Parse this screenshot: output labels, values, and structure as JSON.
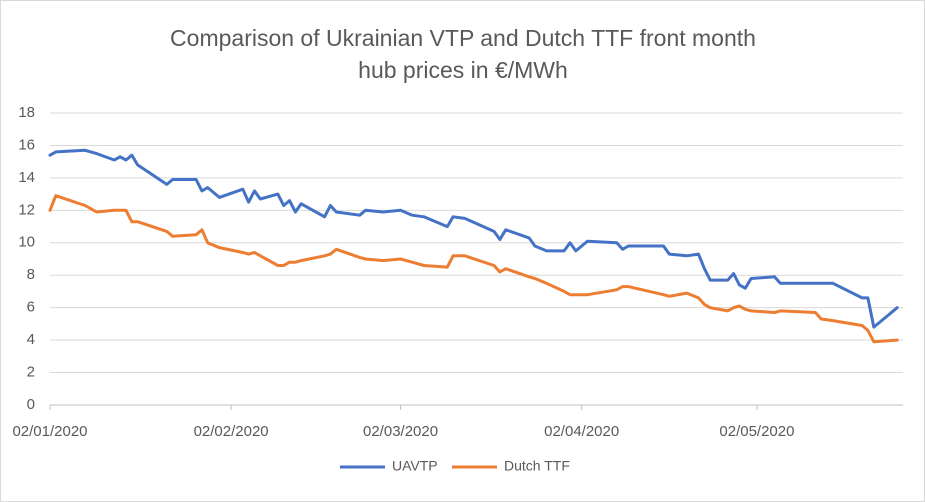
{
  "chart_data": {
    "type": "line",
    "title": [
      "Comparison of Ukrainian VTP and Dutch TTF front month",
      "hub prices in €/MWh"
    ],
    "x": [
      "02/01/2020",
      "03/01/2020",
      "08/01/2020",
      "10/01/2020",
      "13/01/2020",
      "14/01/2020",
      "15/01/2020",
      "16/01/2020",
      "17/01/2020",
      "22/01/2020",
      "23/01/2020",
      "27/01/2020",
      "28/01/2020",
      "29/01/2020",
      "31/01/2020",
      "04/02/2020",
      "05/02/2020",
      "06/02/2020",
      "07/02/2020",
      "10/02/2020",
      "11/02/2020",
      "12/02/2020",
      "13/02/2020",
      "14/02/2020",
      "18/02/2020",
      "19/02/2020",
      "20/02/2020",
      "24/02/2020",
      "25/02/2020",
      "28/02/2020",
      "02/03/2020",
      "04/03/2020",
      "06/03/2020",
      "10/03/2020",
      "11/03/2020",
      "13/03/2020",
      "18/03/2020",
      "19/03/2020",
      "20/03/2020",
      "24/03/2020",
      "25/03/2020",
      "27/03/2020",
      "30/03/2020",
      "31/03/2020",
      "01/04/2020",
      "03/04/2020",
      "08/04/2020",
      "09/04/2020",
      "10/04/2020",
      "16/04/2020",
      "17/04/2020",
      "20/04/2020",
      "22/04/2020",
      "23/04/2020",
      "24/04/2020",
      "27/04/2020",
      "28/04/2020",
      "29/04/2020",
      "30/04/2020",
      "01/05/2020",
      "05/05/2020",
      "06/05/2020",
      "12/05/2020",
      "13/05/2020",
      "15/05/2020",
      "20/05/2020",
      "21/05/2020",
      "22/05/2020",
      "26/05/2020"
    ],
    "series": [
      {
        "name": "UAVTP",
        "color": "#4472c4",
        "values": [
          15.4,
          15.6,
          15.7,
          15.5,
          15.1,
          15.3,
          15.1,
          15.4,
          14.8,
          13.6,
          13.9,
          13.9,
          13.2,
          13.4,
          12.8,
          13.3,
          12.5,
          13.2,
          12.7,
          13.0,
          12.3,
          12.6,
          11.9,
          12.4,
          11.6,
          12.3,
          11.9,
          11.7,
          12.0,
          11.9,
          12.0,
          11.7,
          11.6,
          11.0,
          11.6,
          11.5,
          10.7,
          10.2,
          10.8,
          10.3,
          9.8,
          9.5,
          9.5,
          10.0,
          9.5,
          10.1,
          10.0,
          9.6,
          9.8,
          9.8,
          9.3,
          9.2,
          9.3,
          8.4,
          7.7,
          7.7,
          8.1,
          7.4,
          7.2,
          7.8,
          7.9,
          7.5,
          7.5,
          7.5,
          7.5,
          6.6,
          6.6,
          4.8,
          6.0
        ]
      },
      {
        "name": "Dutch TTF",
        "color": "#ed7d31",
        "values": [
          12.0,
          12.9,
          12.3,
          11.9,
          12.0,
          12.0,
          12.0,
          11.3,
          11.3,
          10.7,
          10.4,
          10.5,
          10.8,
          10.0,
          9.7,
          9.4,
          9.3,
          9.4,
          9.2,
          8.6,
          8.6,
          8.8,
          8.8,
          8.9,
          9.2,
          9.3,
          9.6,
          9.1,
          9.0,
          8.9,
          9.0,
          8.8,
          8.6,
          8.5,
          9.2,
          9.2,
          8.6,
          8.2,
          8.4,
          7.9,
          7.8,
          7.5,
          7.0,
          6.8,
          6.8,
          6.8,
          7.1,
          7.3,
          7.3,
          6.8,
          6.7,
          6.9,
          6.6,
          6.2,
          6.0,
          5.8,
          6.0,
          6.1,
          5.9,
          5.8,
          5.7,
          5.8,
          5.7,
          5.3,
          5.2,
          4.9,
          4.6,
          3.9,
          4.0
        ]
      }
    ],
    "xlim": [
      "02/01/2020",
      "27/05/2020"
    ],
    "xticks": [
      "02/01/2020",
      "02/02/2020",
      "02/03/2020",
      "02/04/2020",
      "02/05/2020"
    ],
    "ylim": [
      0,
      18
    ],
    "yticks": [
      0,
      2,
      4,
      6,
      8,
      10,
      12,
      14,
      16,
      18
    ],
    "grid": true,
    "legend": "bottom"
  }
}
